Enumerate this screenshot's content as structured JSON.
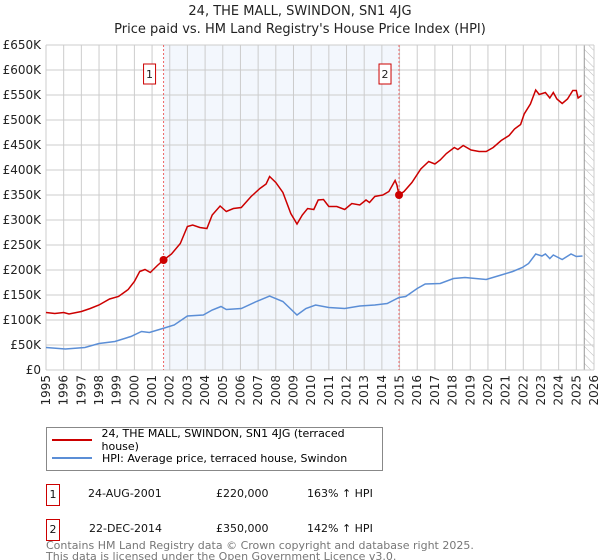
{
  "chart_data": {
    "type": "line",
    "title": "24, THE MALL, SWINDON, SN1 4JG",
    "subtitle": "Price paid vs. HM Land Registry's House Price Index (HPI)",
    "xlim": [
      1995,
      2026
    ],
    "ylim": [
      0,
      650000
    ],
    "y_ticks": [
      "£0",
      "£50K",
      "£100K",
      "£150K",
      "£200K",
      "£250K",
      "£300K",
      "£350K",
      "£400K",
      "£450K",
      "£500K",
      "£550K",
      "£600K",
      "£650K"
    ],
    "x_ticks": [
      "1995",
      "1996",
      "1997",
      "1998",
      "1999",
      "2000",
      "2001",
      "2002",
      "2003",
      "2004",
      "2005",
      "2006",
      "2007",
      "2008",
      "2009",
      "2010",
      "2011",
      "2012",
      "2013",
      "2014",
      "2015",
      "2016",
      "2017",
      "2018",
      "2019",
      "2020",
      "2021",
      "2022",
      "2023",
      "2024",
      "2025",
      "2026"
    ],
    "grid": true,
    "series": [
      {
        "name": "24, THE MALL, SWINDON, SN1 4JG (terraced house)",
        "color": "#cc0000",
        "points": [
          [
            1995,
            115
          ],
          [
            1995.5,
            113
          ],
          [
            1996,
            115
          ],
          [
            1996.3,
            112
          ],
          [
            1997,
            117
          ],
          [
            1997.5,
            123
          ],
          [
            1998,
            130
          ],
          [
            1998.6,
            142
          ],
          [
            1999.1,
            147
          ],
          [
            1999.65,
            161
          ],
          [
            2000,
            177
          ],
          [
            2000.3,
            197
          ],
          [
            2000.6,
            201
          ],
          [
            2000.9,
            195
          ],
          [
            2001.3,
            209
          ],
          [
            2001.65,
            220
          ],
          [
            2002.1,
            232
          ],
          [
            2002.6,
            253
          ],
          [
            2003,
            287
          ],
          [
            2003.3,
            290
          ],
          [
            2003.7,
            285
          ],
          [
            2004.1,
            283
          ],
          [
            2004.4,
            310
          ],
          [
            2004.85,
            328
          ],
          [
            2005.2,
            317
          ],
          [
            2005.6,
            323
          ],
          [
            2006.05,
            325
          ],
          [
            2006.6,
            347
          ],
          [
            2007.1,
            363
          ],
          [
            2007.45,
            372
          ],
          [
            2007.65,
            387
          ],
          [
            2008,
            375
          ],
          [
            2008.4,
            355
          ],
          [
            2008.85,
            313
          ],
          [
            2009.2,
            292
          ],
          [
            2009.5,
            310
          ],
          [
            2009.8,
            323
          ],
          [
            2010.15,
            321
          ],
          [
            2010.4,
            340
          ],
          [
            2010.7,
            341
          ],
          [
            2011,
            327
          ],
          [
            2011.45,
            327
          ],
          [
            2011.9,
            321
          ],
          [
            2012.3,
            333
          ],
          [
            2012.75,
            330
          ],
          [
            2013.1,
            340
          ],
          [
            2013.3,
            335
          ],
          [
            2013.6,
            347
          ],
          [
            2014.05,
            350
          ],
          [
            2014.4,
            357
          ],
          [
            2014.75,
            379
          ],
          [
            2014.85,
            370
          ],
          [
            2014.97,
            350
          ],
          [
            2015.25,
            357
          ],
          [
            2015.7,
            375
          ],
          [
            2016.2,
            402
          ],
          [
            2016.65,
            417
          ],
          [
            2017,
            412
          ],
          [
            2017.3,
            420
          ],
          [
            2017.65,
            433
          ],
          [
            2018.1,
            445
          ],
          [
            2018.3,
            441
          ],
          [
            2018.6,
            449
          ],
          [
            2019.05,
            440
          ],
          [
            2019.5,
            437
          ],
          [
            2019.9,
            437
          ],
          [
            2020.3,
            445
          ],
          [
            2020.75,
            459
          ],
          [
            2021.2,
            469
          ],
          [
            2021.5,
            482
          ],
          [
            2021.85,
            491
          ],
          [
            2022.05,
            512
          ],
          [
            2022.4,
            532
          ],
          [
            2022.7,
            560
          ],
          [
            2022.9,
            551
          ],
          [
            2023.25,
            555
          ],
          [
            2023.5,
            544
          ],
          [
            2023.7,
            555
          ],
          [
            2023.9,
            542
          ],
          [
            2024.2,
            533
          ],
          [
            2024.5,
            542
          ],
          [
            2024.8,
            559
          ],
          [
            2025,
            559
          ],
          [
            2025.1,
            544
          ],
          [
            2025.3,
            549
          ]
        ]
      },
      {
        "name": "HPI: Average price, terraced house, Swindon",
        "color": "#5b8ed6",
        "points": [
          [
            1995,
            45
          ],
          [
            1996.1,
            42
          ],
          [
            1997.2,
            45
          ],
          [
            1998,
            53
          ],
          [
            1998.9,
            57
          ],
          [
            1999.8,
            67
          ],
          [
            2000.4,
            77
          ],
          [
            2000.85,
            75
          ],
          [
            2001.6,
            83
          ],
          [
            2002.25,
            90
          ],
          [
            2003,
            108
          ],
          [
            2003.9,
            110
          ],
          [
            2004.4,
            120
          ],
          [
            2004.9,
            127
          ],
          [
            2005.2,
            121
          ],
          [
            2006.05,
            123
          ],
          [
            2006.9,
            137
          ],
          [
            2007.65,
            148
          ],
          [
            2008.4,
            137
          ],
          [
            2009.2,
            110
          ],
          [
            2009.7,
            123
          ],
          [
            2010.25,
            130
          ],
          [
            2011,
            125
          ],
          [
            2011.9,
            123
          ],
          [
            2012.75,
            128
          ],
          [
            2013.6,
            130
          ],
          [
            2014.3,
            133
          ],
          [
            2014.97,
            145
          ],
          [
            2015.35,
            147
          ],
          [
            2016,
            163
          ],
          [
            2016.45,
            172
          ],
          [
            2017.3,
            173
          ],
          [
            2018.05,
            183
          ],
          [
            2018.7,
            185
          ],
          [
            2019.9,
            181
          ],
          [
            2020.75,
            190
          ],
          [
            2021.4,
            197
          ],
          [
            2021.95,
            205
          ],
          [
            2022.3,
            213
          ],
          [
            2022.7,
            232
          ],
          [
            2023.05,
            228
          ],
          [
            2023.25,
            232
          ],
          [
            2023.5,
            223
          ],
          [
            2023.7,
            230
          ],
          [
            2024.2,
            221
          ],
          [
            2024.7,
            232
          ],
          [
            2025,
            227
          ],
          [
            2025.35,
            228
          ]
        ]
      }
    ],
    "y_unit": "thousands GBP",
    "sales": [
      {
        "label": "1",
        "date": "24-AUG-2001",
        "year": 2001.65,
        "price": "£220,000",
        "value": 220,
        "hpi": "163% ↑ HPI"
      },
      {
        "label": "2",
        "date": "22-DEC-2014",
        "year": 2014.97,
        "price": "£350,000",
        "value": 350,
        "hpi": "142% ↑ HPI"
      }
    ],
    "forecast_start": 2025.45,
    "legend_position": "below"
  },
  "footer": {
    "line1": "Contains HM Land Registry data © Crown copyright and database right 2025.",
    "line2": "This data is licensed under the Open Government Licence v3.0."
  }
}
